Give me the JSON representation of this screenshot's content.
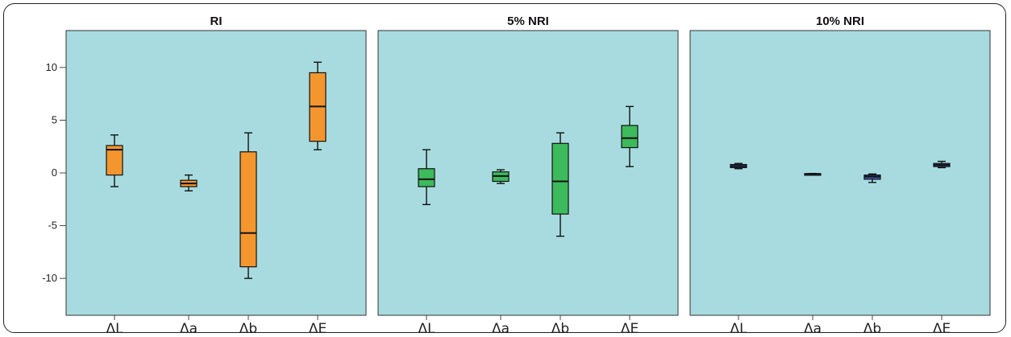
{
  "chart_data": {
    "type": "boxplot",
    "ylim": [
      -13.5,
      13.5
    ],
    "yticks": [
      10,
      5,
      0,
      -5,
      -10
    ],
    "ytick_labels": [
      "10",
      "5",
      "0",
      "-5",
      "-10"
    ],
    "categories": [
      "ΔL",
      "Δa",
      "Δb",
      "ΔE"
    ],
    "grid": false,
    "panels": [
      {
        "title": "RI",
        "color": "#f4962e",
        "boxes": [
          {
            "min": -1.3,
            "q1": -0.2,
            "median": 2.2,
            "q3": 2.6,
            "max": 3.6
          },
          {
            "min": -1.7,
            "q1": -1.3,
            "median": -1.0,
            "q3": -0.7,
            "max": -0.2
          },
          {
            "min": -10.0,
            "q1": -8.9,
            "median": -5.7,
            "q3": 2.0,
            "max": 3.8
          },
          {
            "min": 2.2,
            "q1": 3.0,
            "median": 6.3,
            "q3": 9.5,
            "max": 10.5
          }
        ]
      },
      {
        "title": "5% NRI",
        "color": "#3dba5c",
        "boxes": [
          {
            "min": -3.0,
            "q1": -1.3,
            "median": -0.6,
            "q3": 0.4,
            "max": 2.2
          },
          {
            "min": -1.0,
            "q1": -0.8,
            "median": -0.3,
            "q3": 0.1,
            "max": 0.3
          },
          {
            "min": -6.0,
            "q1": -3.9,
            "median": -0.8,
            "q3": 2.8,
            "max": 3.8
          },
          {
            "min": 0.6,
            "q1": 2.4,
            "median": 3.3,
            "q3": 4.5,
            "max": 6.3
          }
        ]
      },
      {
        "title": "10% NRI",
        "color": "#3b5cc0",
        "boxes": [
          {
            "min": 0.4,
            "q1": 0.5,
            "median": 0.65,
            "q3": 0.8,
            "max": 0.9
          },
          {
            "min": -0.15,
            "q1": -0.12,
            "median": -0.1,
            "q3": -0.07,
            "max": -0.05
          },
          {
            "min": -0.9,
            "q1": -0.6,
            "median": -0.35,
            "q3": -0.2,
            "max": -0.1
          },
          {
            "min": 0.5,
            "q1": 0.6,
            "median": 0.75,
            "q3": 0.9,
            "max": 1.1
          }
        ]
      }
    ],
    "panel_background": "#a8dbdf"
  }
}
